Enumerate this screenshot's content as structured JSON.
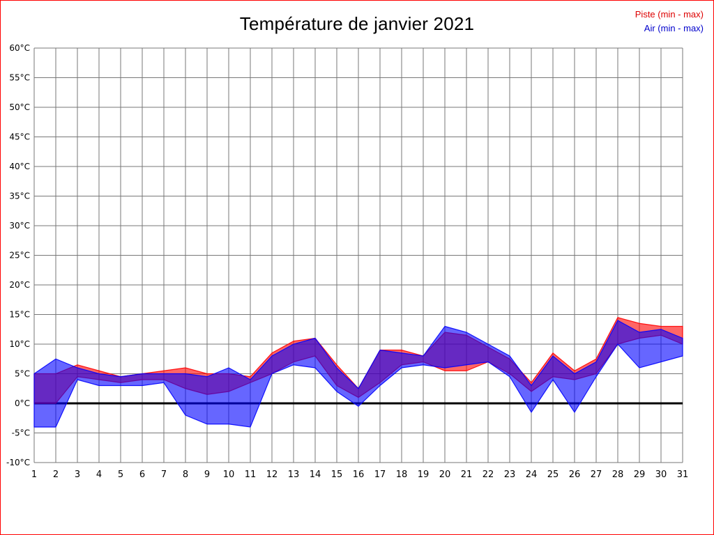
{
  "page": {
    "background": "#ffffff",
    "border_color": "#ff0000"
  },
  "header": {
    "title": "Température de janvier 2021"
  },
  "legend": {
    "piste": {
      "label": "Piste (min - max)",
      "color": "#dd0000"
    },
    "air": {
      "label": "Air (min - max)",
      "color": "#0000cc"
    }
  },
  "chart_data": {
    "type": "area",
    "title": "Température de janvier 2021",
    "xlabel": "",
    "ylabel": "",
    "unit": "°C",
    "grid": true,
    "zero_line": true,
    "legend_position": "top-right",
    "x": [
      1,
      2,
      3,
      4,
      5,
      6,
      7,
      8,
      9,
      10,
      11,
      12,
      13,
      14,
      15,
      16,
      17,
      18,
      19,
      20,
      21,
      22,
      23,
      24,
      25,
      26,
      27,
      28,
      29,
      30,
      31
    ],
    "x_range": [
      1,
      31
    ],
    "ylim": [
      -10,
      60
    ],
    "y_tick_step": 5,
    "series": [
      {
        "name": "Piste (min - max)",
        "color": "#ff0000",
        "opacity": 0.6,
        "min": [
          0,
          0,
          4.5,
          4,
          3.5,
          4,
          4,
          2.5,
          1.5,
          2,
          3.5,
          5,
          7,
          8,
          3,
          1,
          3.5,
          6.5,
          7,
          5.5,
          5.5,
          7,
          5,
          2,
          4.5,
          4,
          5,
          10,
          11,
          11.5,
          10
        ],
        "max": [
          5,
          5,
          6.5,
          5.5,
          4.5,
          5,
          5.5,
          6,
          5,
          5,
          4.5,
          8.5,
          10.5,
          11,
          6.5,
          2.5,
          9,
          9,
          8,
          12,
          11.5,
          9.5,
          7.5,
          3.5,
          8.5,
          5.5,
          7.5,
          14.5,
          13.5,
          13,
          13
        ]
      },
      {
        "name": "Air (min - max)",
        "color": "#0000ff",
        "opacity": 0.6,
        "min": [
          -4,
          -4,
          4,
          3,
          3,
          3,
          3.5,
          -2,
          -3.5,
          -3.5,
          -4,
          5,
          6.5,
          6,
          2,
          -0.5,
          3,
          6,
          6.5,
          6,
          6.5,
          7,
          4.5,
          -1.5,
          4,
          -1.5,
          4.5,
          10,
          6,
          7,
          8
        ],
        "max": [
          5,
          7.5,
          6,
          5,
          4.5,
          5,
          5,
          5,
          4.5,
          6,
          4,
          8,
          10,
          11,
          6,
          2.5,
          9,
          8.5,
          8,
          13,
          12,
          10,
          8,
          3,
          8,
          5,
          7,
          14,
          12,
          12.5,
          11
        ]
      }
    ]
  }
}
